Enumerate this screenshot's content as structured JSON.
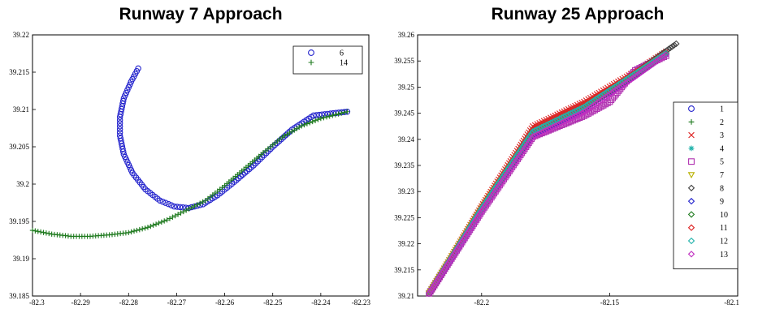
{
  "chart_data": [
    {
      "type": "scatter",
      "title": "Runway 7 Approach",
      "xlim": [
        -82.3,
        -82.23
      ],
      "ylim": [
        39.185,
        39.22
      ],
      "xticks": [
        "-82.3",
        "-82.29",
        "-82.28",
        "-82.27",
        "-82.26",
        "-82.25",
        "-82.24",
        "-82.23"
      ],
      "yticks": [
        "39.185",
        "39.19",
        "39.195",
        "39.2",
        "39.205",
        "39.21",
        "39.215",
        "39.22"
      ],
      "grid": false,
      "legend": "top-right",
      "series": [
        {
          "name": "6",
          "marker": "circle",
          "color": "#2222cc",
          "points": [
            [
              -82.278,
              39.2155
            ],
            [
              -82.2795,
              39.2137
            ],
            [
              -82.281,
              39.2115
            ],
            [
              -82.2818,
              39.209
            ],
            [
              -82.2818,
              39.2065
            ],
            [
              -82.281,
              39.204
            ],
            [
              -82.2792,
              39.2015
            ],
            [
              -82.2765,
              39.1993
            ],
            [
              -82.2735,
              39.1978
            ],
            [
              -82.2705,
              39.197
            ],
            [
              -82.2675,
              39.1968
            ],
            [
              -82.2645,
              39.1973
            ],
            [
              -82.2615,
              39.1985
            ],
            [
              -82.258,
              39.2003
            ],
            [
              -82.254,
              39.2025
            ],
            [
              -82.25,
              39.205
            ],
            [
              -82.246,
              39.2073
            ],
            [
              -82.2415,
              39.2092
            ],
            [
              -82.2345,
              39.2097
            ]
          ]
        },
        {
          "name": "14",
          "marker": "plus",
          "color": "#1e7a1e",
          "points": [
            [
              -82.3,
              39.1938
            ],
            [
              -82.296,
              39.1933
            ],
            [
              -82.292,
              39.193
            ],
            [
              -82.288,
              39.193
            ],
            [
              -82.284,
              39.1932
            ],
            [
              -82.28,
              39.1935
            ],
            [
              -82.276,
              39.1942
            ],
            [
              -82.272,
              39.1952
            ],
            [
              -82.268,
              39.1965
            ],
            [
              -82.264,
              39.1978
            ],
            [
              -82.26,
              39.1998
            ],
            [
              -82.256,
              39.202
            ],
            [
              -82.252,
              39.2042
            ],
            [
              -82.248,
              39.2063
            ],
            [
              -82.244,
              39.2078
            ],
            [
              -82.24,
              39.2088
            ],
            [
              -82.2345,
              39.2097
            ]
          ]
        }
      ]
    },
    {
      "type": "scatter",
      "title": "Runway 25 Approach",
      "xlim": [
        -82.225,
        -82.1
      ],
      "ylim": [
        39.21,
        39.26
      ],
      "xticks": [
        "-82.2",
        "-82.15",
        "-82.1"
      ],
      "yticks": [
        "39.21",
        "39.215",
        "39.22",
        "39.225",
        "39.23",
        "39.235",
        "39.24",
        "39.245",
        "39.25",
        "39.255",
        "39.26"
      ],
      "grid": false,
      "legend": "right",
      "series": [
        {
          "name": "1",
          "marker": "circle",
          "color": "#2222cc",
          "points": [
            [
              -82.2205,
              39.2105
            ],
            [
              -82.2,
              39.2265
            ],
            [
              -82.18,
              39.2415
            ],
            [
              -82.16,
              39.246
            ],
            [
              -82.14,
              39.2522
            ],
            [
              -82.128,
              39.2563
            ]
          ]
        },
        {
          "name": "2",
          "marker": "plus",
          "color": "#1e7a1e",
          "points": [
            [
              -82.2205,
              39.2105
            ],
            [
              -82.2,
              39.227
            ],
            [
              -82.18,
              39.2422
            ],
            [
              -82.16,
              39.2468
            ],
            [
              -82.14,
              39.2525
            ],
            [
              -82.128,
              39.2566
            ]
          ]
        },
        {
          "name": "3",
          "marker": "x",
          "color": "#dd2222",
          "points": [
            [
              -82.2205,
              39.2105
            ],
            [
              -82.2,
              39.2272
            ],
            [
              -82.18,
              39.2425
            ],
            [
              -82.16,
              39.2472
            ],
            [
              -82.14,
              39.253
            ],
            [
              -82.128,
              39.2568
            ]
          ]
        },
        {
          "name": "4",
          "marker": "star",
          "color": "#20b2aa",
          "points": [
            [
              -82.2205,
              39.2105
            ],
            [
              -82.2,
              39.2268
            ],
            [
              -82.18,
              39.2418
            ],
            [
              -82.16,
              39.2465
            ],
            [
              -82.14,
              39.2527
            ],
            [
              -82.128,
              39.2565
            ]
          ]
        },
        {
          "name": "5",
          "marker": "square",
          "color": "#b030b0",
          "points": [
            [
              -82.2205,
              39.2105
            ],
            [
              -82.2,
              39.2262
            ],
            [
              -82.18,
              39.2405
            ],
            [
              -82.16,
              39.2445
            ],
            [
              -82.15,
              39.2472
            ],
            [
              -82.14,
              39.2532
            ],
            [
              -82.128,
              39.256
            ]
          ]
        },
        {
          "name": "7",
          "marker": "triangle-down",
          "color": "#b8b000",
          "points": [
            [
              -82.2205,
              39.2105
            ],
            [
              -82.2,
              39.2268
            ],
            [
              -82.18,
              39.2412
            ],
            [
              -82.16,
              39.2462
            ],
            [
              -82.14,
              39.2524
            ],
            [
              -82.128,
              39.2562
            ]
          ]
        },
        {
          "name": "8",
          "marker": "diamond",
          "color": "#444444",
          "points": [
            [
              -82.2205,
              39.2105
            ],
            [
              -82.2,
              39.2264
            ],
            [
              -82.18,
              39.241
            ],
            [
              -82.16,
              39.2462
            ],
            [
              -82.14,
              39.2528
            ],
            [
              -82.124,
              39.2583
            ]
          ]
        },
        {
          "name": "9",
          "marker": "diamond",
          "color": "#2222cc",
          "points": [
            [
              -82.2205,
              39.2105
            ],
            [
              -82.2,
              39.2262
            ],
            [
              -82.18,
              39.2408
            ],
            [
              -82.16,
              39.2458
            ],
            [
              -82.14,
              39.2522
            ],
            [
              -82.128,
              39.2563
            ]
          ]
        },
        {
          "name": "10",
          "marker": "diamond",
          "color": "#1e7a1e",
          "points": [
            [
              -82.2205,
              39.2105
            ],
            [
              -82.2,
              39.2266
            ],
            [
              -82.18,
              39.2412
            ],
            [
              -82.16,
              39.246
            ],
            [
              -82.14,
              39.2524
            ],
            [
              -82.128,
              39.2564
            ]
          ]
        },
        {
          "name": "11",
          "marker": "diamond",
          "color": "#dd2222",
          "points": [
            [
              -82.2205,
              39.2105
            ],
            [
              -82.2,
              39.227
            ],
            [
              -82.18,
              39.2418
            ],
            [
              -82.16,
              39.2465
            ],
            [
              -82.14,
              39.2528
            ],
            [
              -82.128,
              39.2566
            ]
          ]
        },
        {
          "name": "12",
          "marker": "diamond",
          "color": "#20b2aa",
          "points": [
            [
              -82.2205,
              39.2105
            ],
            [
              -82.2,
              39.2268
            ],
            [
              -82.18,
              39.2415
            ],
            [
              -82.16,
              39.2462
            ],
            [
              -82.14,
              39.2526
            ],
            [
              -82.128,
              39.2565
            ]
          ]
        },
        {
          "name": "13",
          "marker": "diamond",
          "color": "#c030c0",
          "points": [
            [
              -82.2205,
              39.2105
            ],
            [
              -82.2,
              39.2262
            ],
            [
              -82.18,
              39.2405
            ],
            [
              -82.16,
              39.2452
            ],
            [
              -82.14,
              39.252
            ],
            [
              -82.128,
              39.2562
            ]
          ]
        }
      ]
    }
  ]
}
